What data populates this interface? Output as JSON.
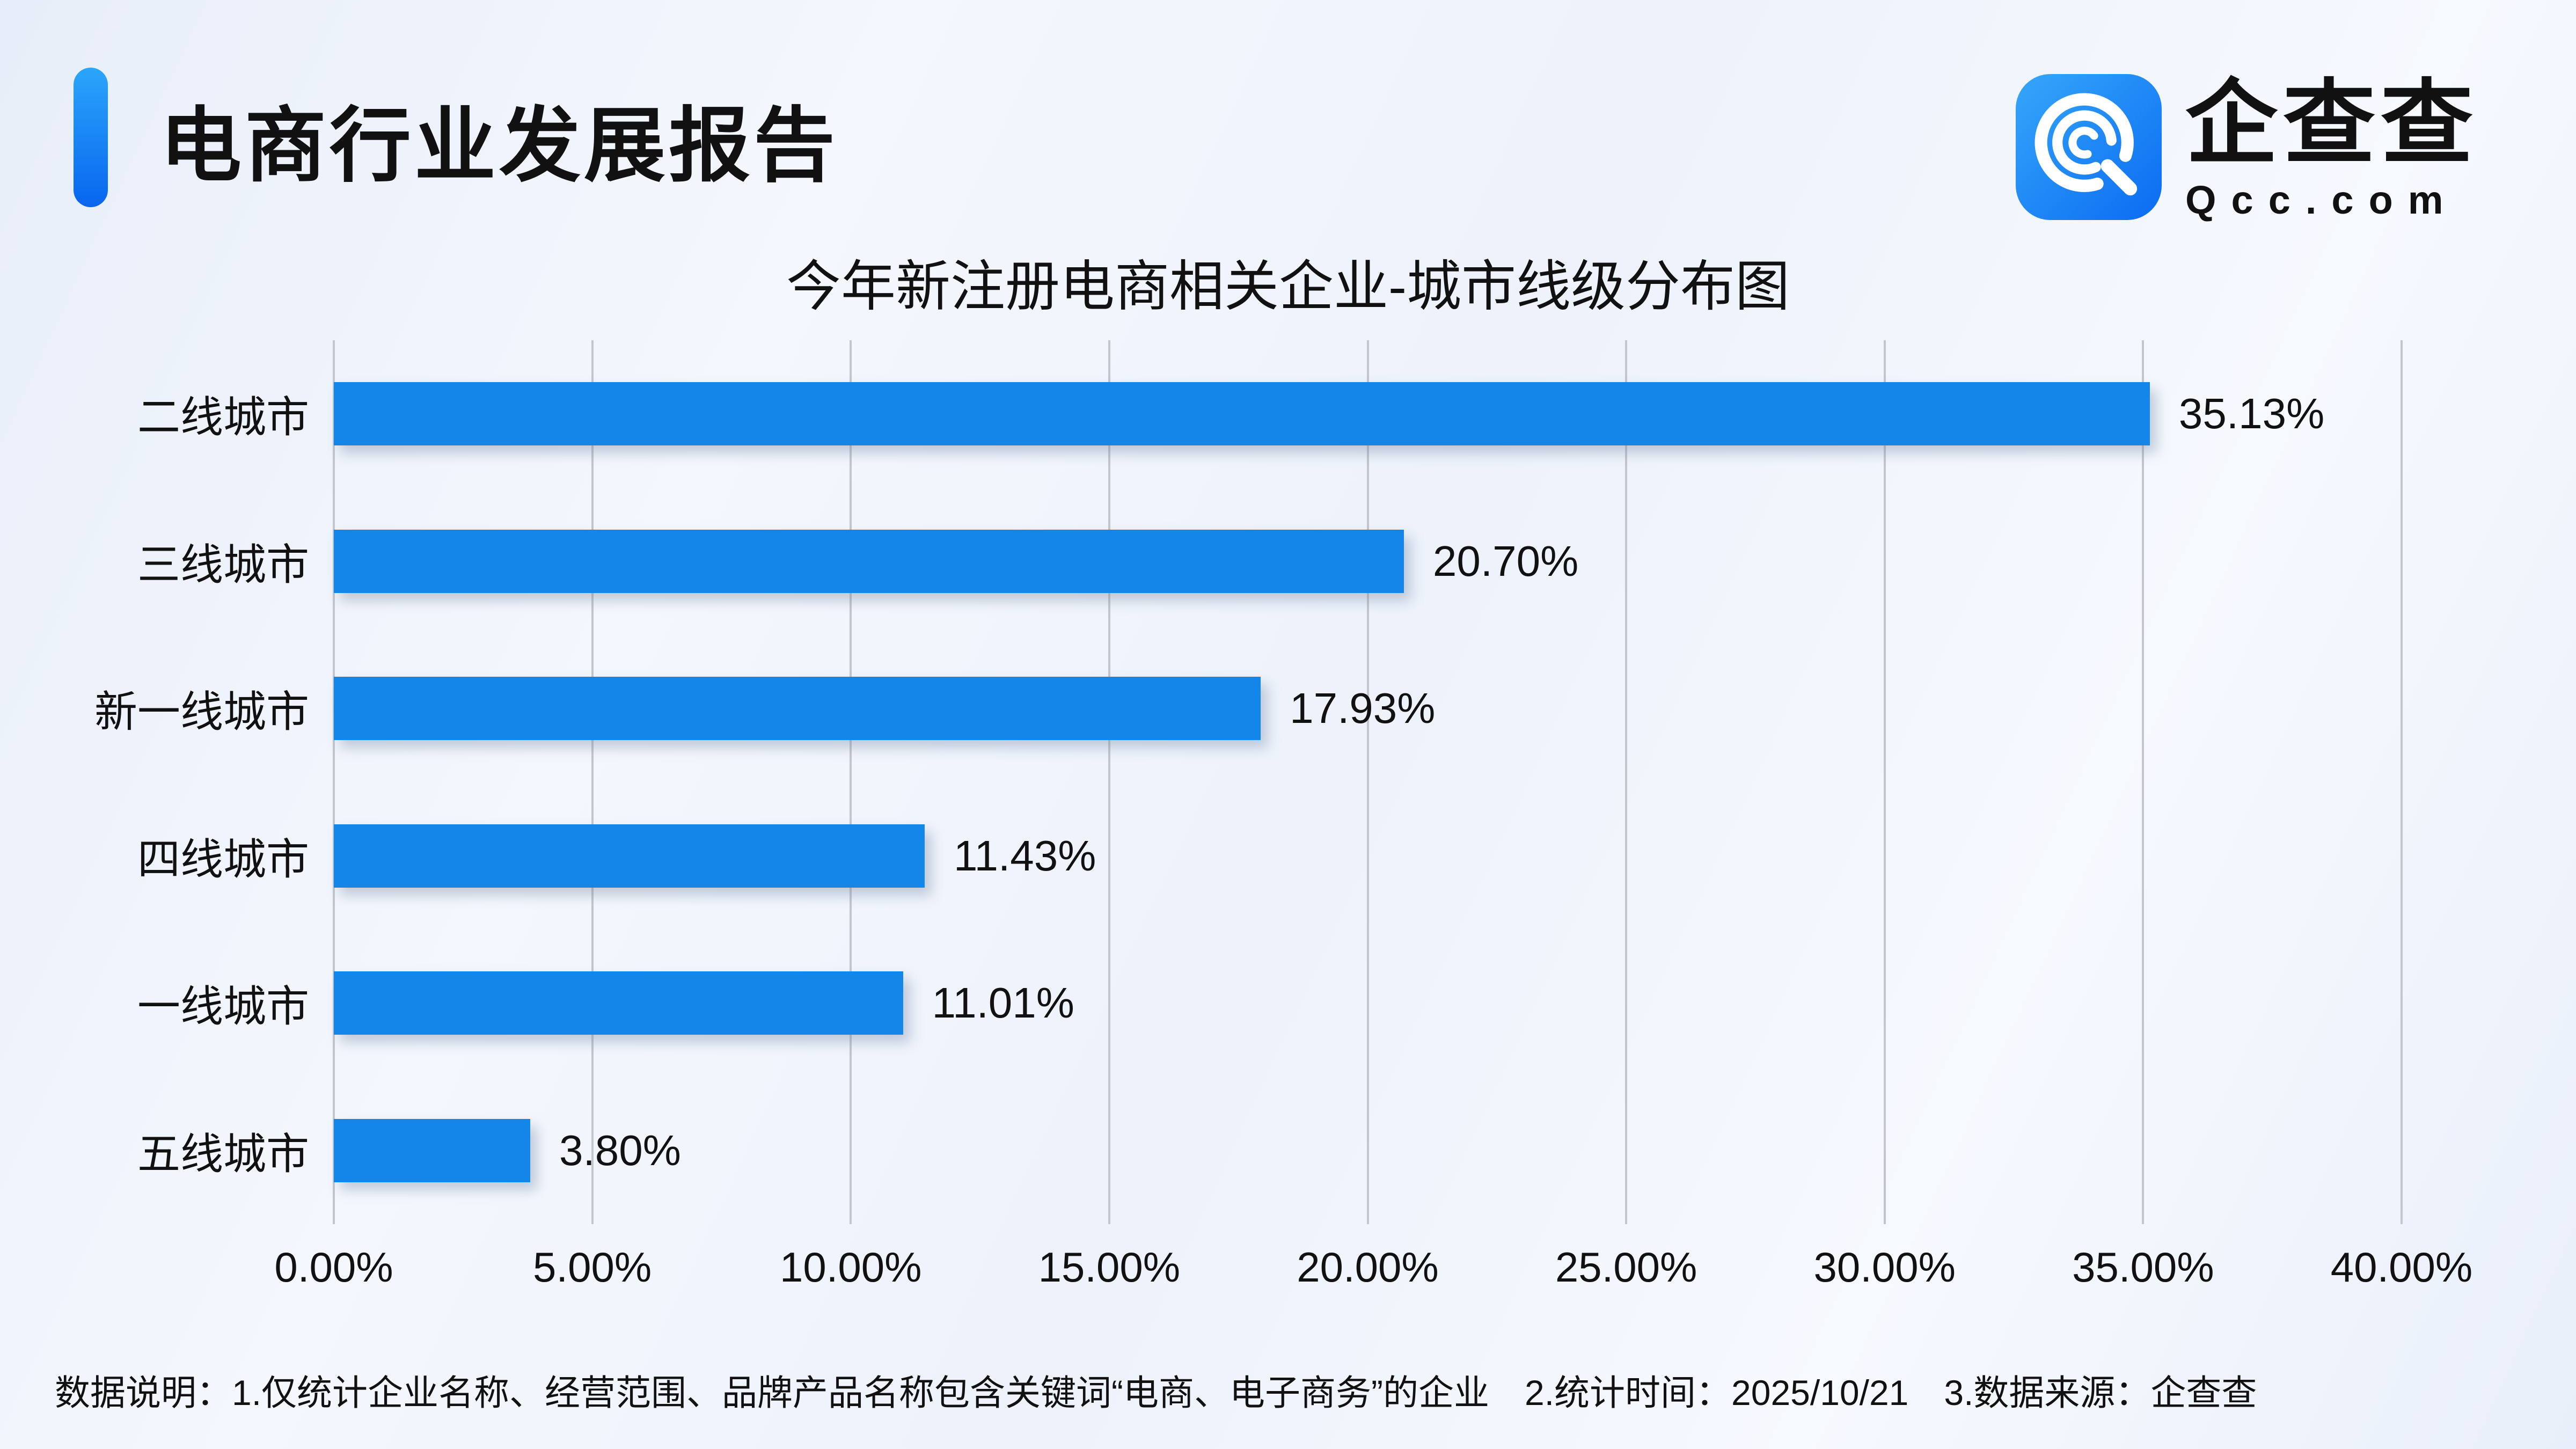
{
  "header": {
    "title": "电商行业发展报告",
    "logo": {
      "icon": "qcc-logo-icon",
      "name": "企查查",
      "domain": "Qcc.com"
    }
  },
  "chart_data": {
    "type": "bar",
    "orientation": "horizontal",
    "title": "今年新注册电商相关企业-城市线级分布图",
    "categories": [
      "二线城市",
      "三线城市",
      "新一线城市",
      "四线城市",
      "一线城市",
      "五线城市"
    ],
    "values": [
      35.13,
      20.7,
      17.93,
      11.43,
      11.01,
      3.8
    ],
    "value_labels": [
      "35.13%",
      "20.70%",
      "17.93%",
      "11.43%",
      "11.01%",
      "3.80%"
    ],
    "x_ticks": [
      "0.00%",
      "5.00%",
      "10.00%",
      "15.00%",
      "20.00%",
      "25.00%",
      "30.00%",
      "35.00%",
      "40.00%"
    ],
    "xlim": [
      0,
      40
    ],
    "grid": true,
    "legend": "none",
    "bar_color": "#1486ea"
  },
  "footer": {
    "notes": [
      "数据说明：1.仅统计企业名称、经营范围、品牌产品名称包含关键词“电商、电子商务”的企业",
      "2.统计时间：2025/10/21",
      "3.数据来源：企查查"
    ]
  },
  "colors": {
    "accent_blue_top": "#2ba6fb",
    "accent_blue_bottom": "#0866ee",
    "bar_blue": "#1486ea",
    "grid_gray": "#c3c6cc",
    "background": "#eef2fb",
    "text": "#111111"
  }
}
